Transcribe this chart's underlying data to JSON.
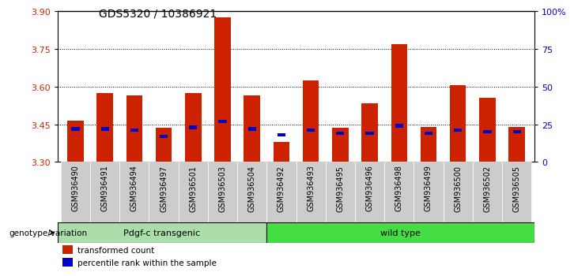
{
  "title": "GDS5320 / 10386921",
  "samples": [
    "GSM936490",
    "GSM936491",
    "GSM936494",
    "GSM936497",
    "GSM936501",
    "GSM936503",
    "GSM936504",
    "GSM936492",
    "GSM936493",
    "GSM936495",
    "GSM936496",
    "GSM936498",
    "GSM936499",
    "GSM936500",
    "GSM936502",
    "GSM936505"
  ],
  "red_values": [
    3.465,
    3.575,
    3.565,
    3.435,
    3.575,
    3.875,
    3.565,
    3.38,
    3.625,
    3.435,
    3.535,
    3.77,
    3.44,
    3.605,
    3.555,
    3.44
  ],
  "blue_values": [
    22,
    22,
    21,
    17,
    23,
    27,
    22,
    18,
    21,
    19,
    19,
    24,
    19,
    21,
    20,
    20
  ],
  "group1_label": "Pdgf-c transgenic",
  "group2_label": "wild type",
  "group1_count": 7,
  "group2_count": 9,
  "ylim_left": [
    3.3,
    3.9
  ],
  "ylim_right": [
    0,
    100
  ],
  "yticks_left": [
    3.3,
    3.45,
    3.6,
    3.75,
    3.9
  ],
  "yticks_right": [
    0,
    25,
    50,
    75,
    100
  ],
  "ytick_labels_right": [
    "0",
    "25",
    "50",
    "75",
    "100%"
  ],
  "bar_bottom": 3.3,
  "red_color": "#cc2200",
  "blue_color": "#0000cc",
  "group1_bg": "#aaddaa",
  "group2_bg": "#44dd44",
  "tick_label_color_left": "#cc2200",
  "tick_label_color_right": "#0000cc",
  "legend_red": "transformed count",
  "legend_blue": "percentile rank within the sample",
  "genotype_label": "genotype/variation",
  "bar_width": 0.55,
  "grid_lines": [
    3.45,
    3.6,
    3.75
  ],
  "xtick_bg_color": "#cccccc"
}
